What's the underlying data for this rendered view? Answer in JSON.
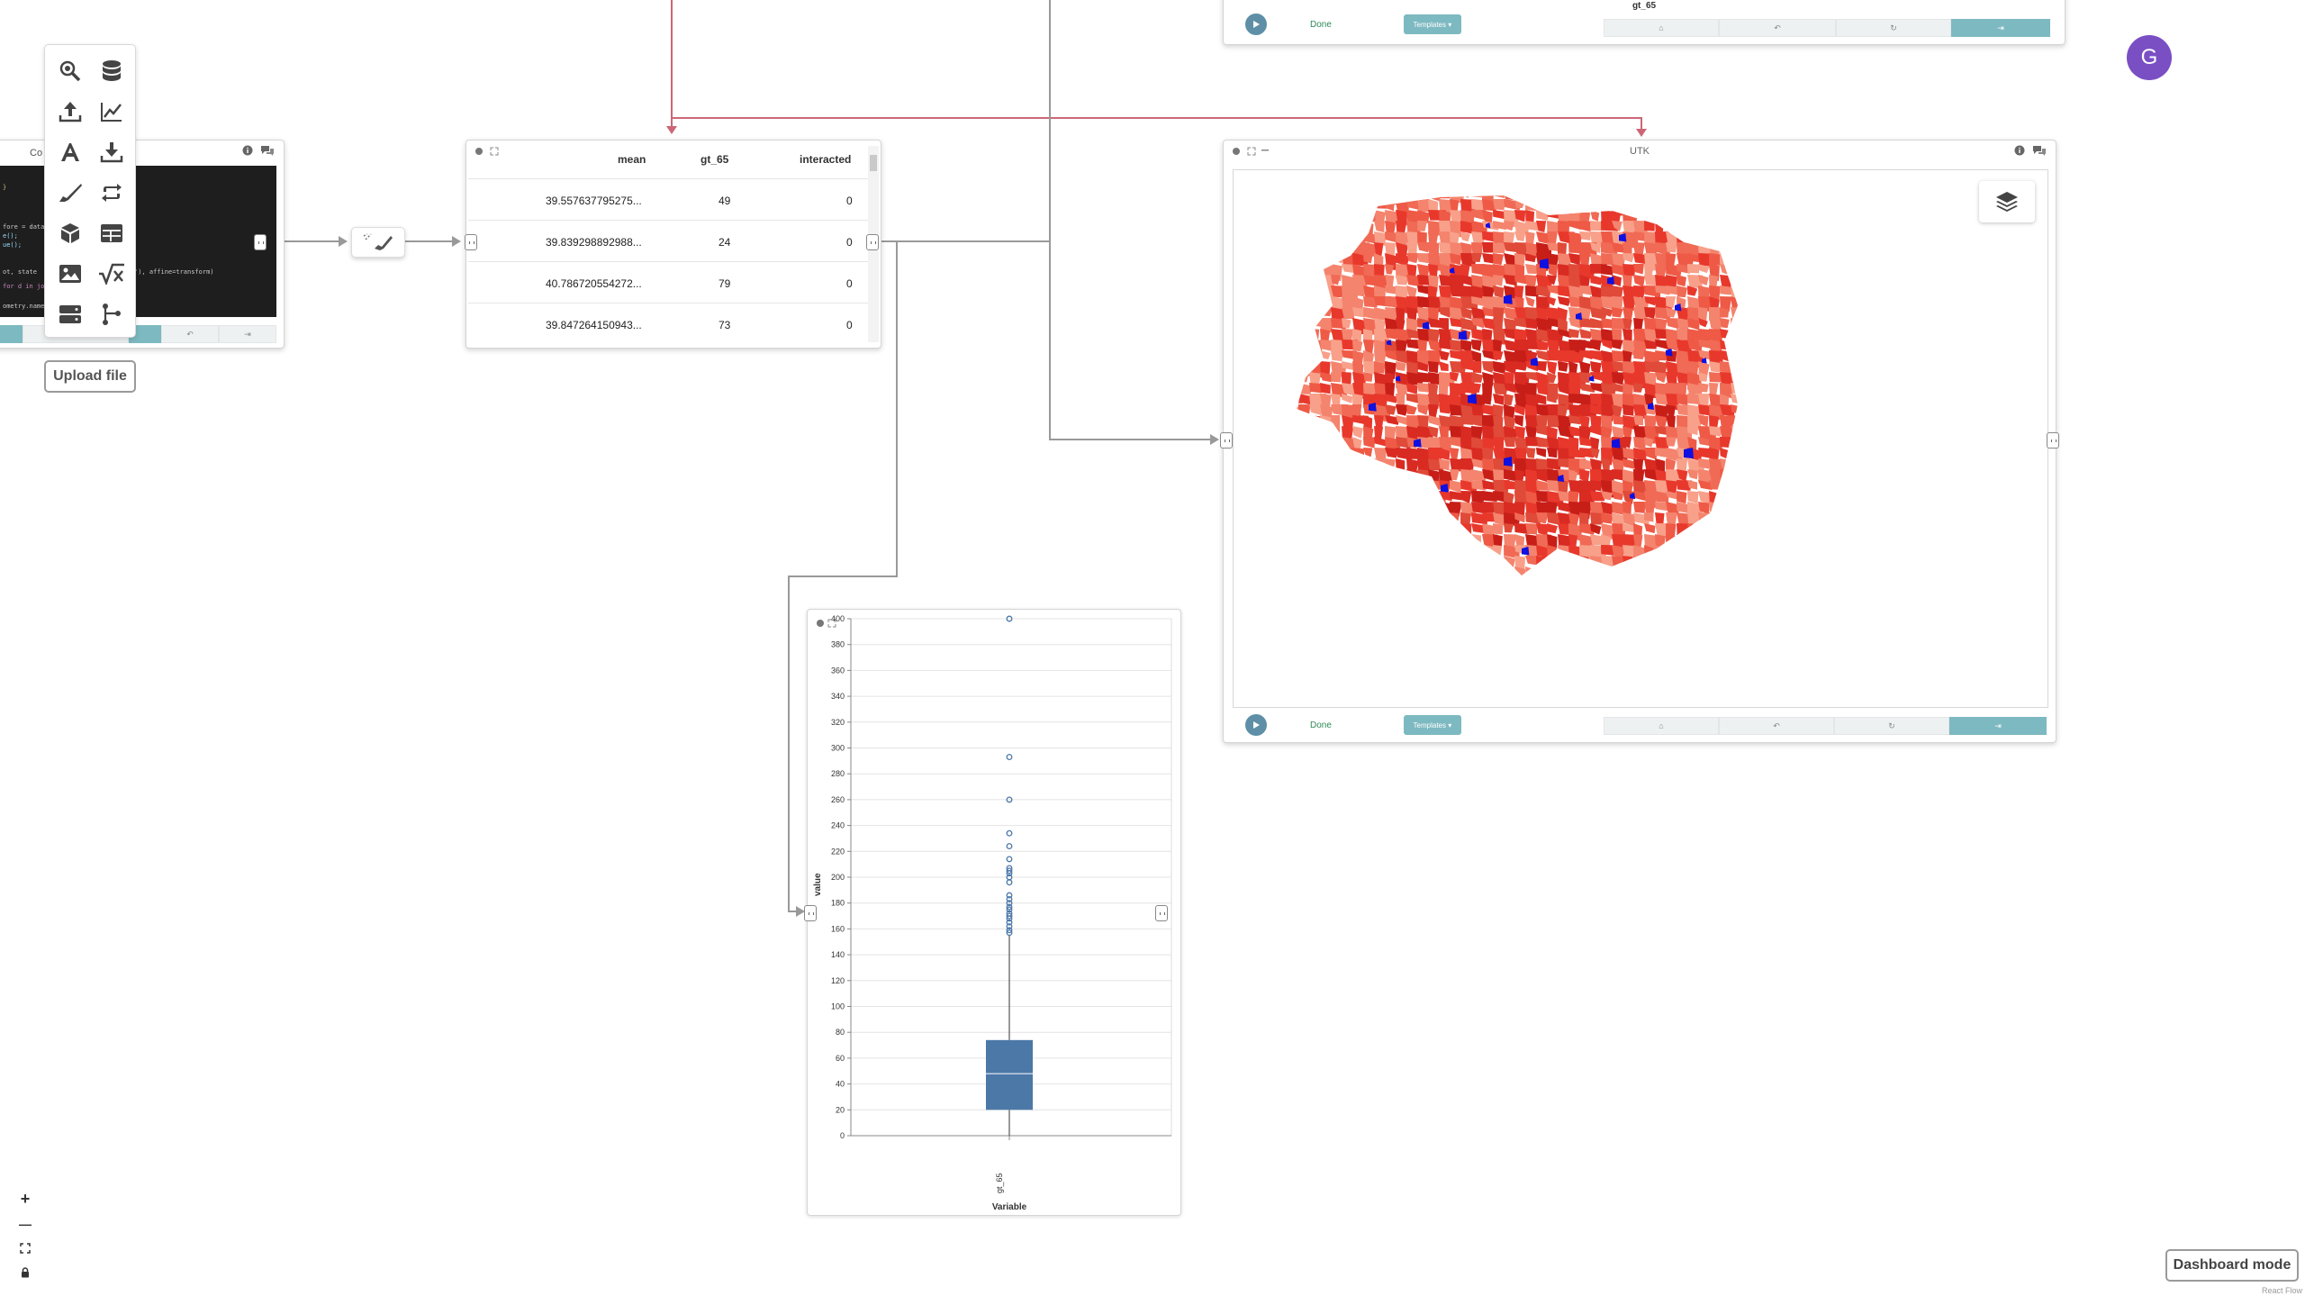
{
  "toolbar": {
    "tools": [
      {
        "name": "search-tool",
        "icon": "magnifier-icon"
      },
      {
        "name": "database-tool",
        "icon": "database-icon"
      },
      {
        "name": "upload-tool",
        "icon": "upload-icon"
      },
      {
        "name": "chart-tool",
        "icon": "line-chart-icon"
      },
      {
        "name": "text-tool",
        "icon": "text-icon"
      },
      {
        "name": "download-tool",
        "icon": "download-icon"
      },
      {
        "name": "brush-tool",
        "icon": "brush-icon"
      },
      {
        "name": "transform-tool",
        "icon": "repeat-icon"
      },
      {
        "name": "3d-tool",
        "icon": "cube-icon"
      },
      {
        "name": "table-tool",
        "icon": "table-icon"
      },
      {
        "name": "image-tool",
        "icon": "image-icon"
      },
      {
        "name": "formula-tool",
        "icon": "sqrt-icon"
      },
      {
        "name": "server-tool",
        "icon": "server-icon"
      },
      {
        "name": "merge-tool",
        "icon": "fork-icon"
      }
    ],
    "upload_label": "Upload file"
  },
  "code_node": {
    "title": "Co",
    "lines": [
      "}",
      "",
      "",
      "fore = datase",
      "e(); ",
      "ue();",
      "",
      "",
      "ot, state",
      "'), affine=transform)",
      "",
      "for d in join",
      "",
      "ometry.name,"
    ]
  },
  "table_node": {
    "columns": [
      "mean",
      "gt_65",
      "interacted"
    ],
    "rows": [
      [
        "39.557637795275...",
        "49",
        "0"
      ],
      [
        "39.839298892988...",
        "24",
        "0"
      ],
      [
        "40.786720554272...",
        "79",
        "0"
      ],
      [
        "39.847264150943...",
        "73",
        "0"
      ]
    ]
  },
  "top_node": {
    "title": "gt_65",
    "done_label": "Done",
    "templates_label": "Templates ▾"
  },
  "map_node": {
    "title": "UTK",
    "done_label": "Done",
    "templates_label": "Templates ▾",
    "colors": {
      "base": "#e8382c",
      "light": "#f4846e",
      "dark": "#c81e18",
      "highlight": "#1010e0"
    }
  },
  "chart_node": {
    "chart_data": {
      "type": "boxplot",
      "categories": [
        "gt_65"
      ],
      "xlabel": "Variable",
      "ylabel": "value",
      "ylim": [
        0,
        400
      ],
      "yticks": [
        0,
        20,
        40,
        60,
        80,
        100,
        120,
        140,
        160,
        180,
        200,
        220,
        240,
        260,
        280,
        300,
        320,
        340,
        360,
        380,
        400
      ],
      "box": {
        "min": 0,
        "q1": 20,
        "median": 48,
        "q3": 74,
        "max": 155
      },
      "outliers": [
        400,
        293,
        260,
        234,
        224,
        214,
        207,
        205,
        203,
        200,
        196,
        186,
        183,
        180,
        177,
        175,
        172,
        170,
        168,
        165,
        162,
        159,
        157
      ],
      "color": "#4c78a8"
    }
  },
  "zoom": {
    "zoom_in": "+",
    "zoom_out": "—"
  },
  "dashboard_label": "Dashboard mode",
  "attribution": "React Flow",
  "avatar_letter": "G",
  "colors": {
    "wire": "#999999",
    "wire_highlight": "#cc6677",
    "teal": "#7db9c1"
  }
}
